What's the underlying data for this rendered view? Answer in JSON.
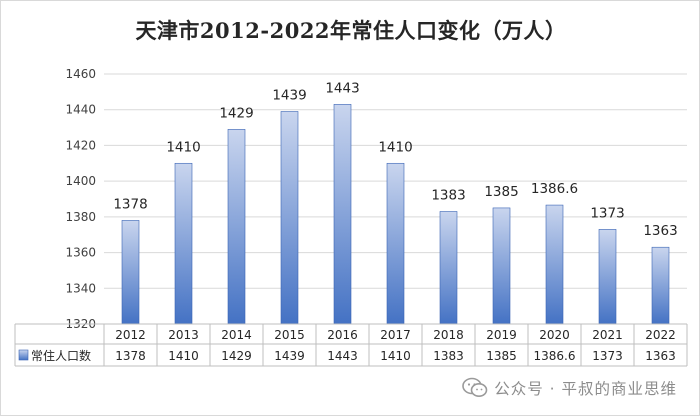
{
  "chart_data": {
    "type": "bar",
    "title": "天津市2012-2022年常住人口变化（万人）",
    "categories": [
      "2012",
      "2013",
      "2014",
      "2015",
      "2016",
      "2017",
      "2018",
      "2019",
      "2020",
      "2021",
      "2022"
    ],
    "series": [
      {
        "name": "常住人口数",
        "values": [
          1378,
          1410,
          1429,
          1439,
          1443,
          1410,
          1383,
          1385,
          1386.6,
          1373,
          1363
        ],
        "labels": [
          "1378",
          "1410",
          "1429",
          "1439",
          "1443",
          "1410",
          "1383",
          "1385",
          "1386.6",
          "1373",
          "1363"
        ],
        "color": "#4472c4"
      }
    ],
    "y_ticks": [
      "1320",
      "1340",
      "1360",
      "1380",
      "1400",
      "1420",
      "1440",
      "1460"
    ],
    "ylim": [
      1320,
      1460
    ],
    "grid": true,
    "legend": "data-table-left",
    "data_table": true
  },
  "watermark": {
    "text": "公众号 · 平叔的商业思维",
    "icon": "wechat-icon"
  }
}
